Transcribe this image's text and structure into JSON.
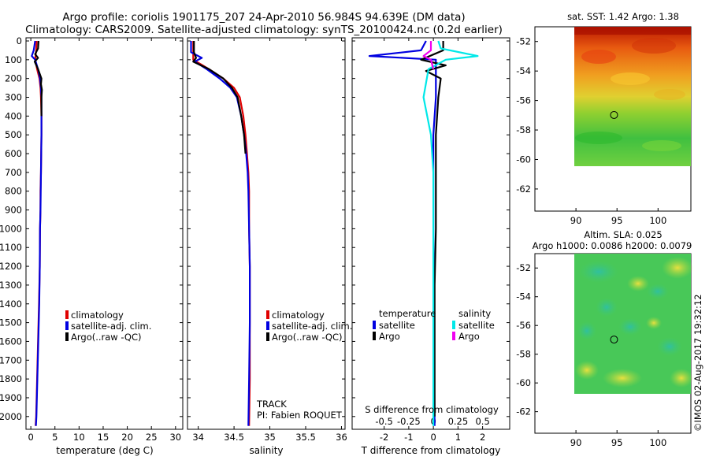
{
  "title_line1": "Argo profile: coriolis 1901175_207 24-Apr-2010 56.984S 94.639E (DM data)",
  "title_line2": "Climatology: CARS2009. Satellite-adjusted climatology: synTS_20100424.nc (0.2d earlier)",
  "watermark": "©IMOS 02-Aug-2017 19:32:12",
  "colors": {
    "climatology": "#e00000",
    "satellite": "#0000e0",
    "argo": "#000000",
    "sat_salinity": "#00e8e8",
    "argo_salinity": "#f000f0"
  },
  "chart_data": [
    {
      "type": "line",
      "name": "temperature",
      "xlabel": "temperature (deg C)",
      "ylabel": "depth",
      "xlim": [
        -1,
        31.5
      ],
      "ylim": [
        0,
        2100
      ],
      "xticks": [
        0,
        5,
        10,
        15,
        20,
        25,
        30
      ],
      "yticks": [
        0,
        100,
        200,
        300,
        400,
        500,
        600,
        700,
        800,
        900,
        1000,
        1100,
        1200,
        1300,
        1400,
        1500,
        1600,
        1700,
        1800,
        1900,
        2000
      ],
      "legend": [
        "climatology",
        "satellite-adj. clim.",
        "Argo(..raw -QC)"
      ],
      "series": [
        {
          "name": "climatology",
          "color": "#e00000",
          "points": [
            [
              1.2,
              0
            ],
            [
              1.1,
              50
            ],
            [
              0.9,
              100
            ],
            [
              1.3,
              150
            ],
            [
              1.8,
              200
            ],
            [
              2.0,
              250
            ],
            [
              2.1,
              300
            ],
            [
              2.2,
              400
            ],
            [
              2.2,
              500
            ],
            [
              2.15,
              600
            ],
            [
              2.1,
              700
            ],
            [
              2.0,
              800
            ],
            [
              2.0,
              900
            ],
            [
              1.9,
              1000
            ],
            [
              1.85,
              1200
            ],
            [
              1.7,
              1400
            ],
            [
              1.5,
              1600
            ],
            [
              1.3,
              1800
            ],
            [
              1.1,
              2000
            ],
            [
              1.0,
              2050
            ]
          ]
        },
        {
          "name": "satellite-adj. clim.",
          "color": "#0000e0",
          "points": [
            [
              0.9,
              0
            ],
            [
              0.6,
              50
            ],
            [
              0.2,
              80
            ],
            [
              0.9,
              100
            ],
            [
              1.5,
              150
            ],
            [
              1.9,
              200
            ],
            [
              2.1,
              250
            ],
            [
              2.2,
              300
            ],
            [
              2.2,
              400
            ],
            [
              2.2,
              500
            ],
            [
              2.15,
              600
            ],
            [
              2.1,
              700
            ],
            [
              2.05,
              800
            ],
            [
              2.0,
              900
            ],
            [
              1.9,
              1000
            ],
            [
              1.85,
              1200
            ],
            [
              1.75,
              1400
            ],
            [
              1.55,
              1600
            ],
            [
              1.35,
              1800
            ],
            [
              1.15,
              2000
            ],
            [
              1.05,
              2050
            ]
          ]
        },
        {
          "name": "Argo(..raw -QC)",
          "color": "#000000",
          "points": [
            [
              1.6,
              0
            ],
            [
              1.5,
              40
            ],
            [
              0.9,
              70
            ],
            [
              1.5,
              90
            ],
            [
              0.8,
              110
            ],
            [
              1.5,
              150
            ],
            [
              2.2,
              200
            ],
            [
              2.1,
              230
            ],
            [
              2.3,
              260
            ],
            [
              2.2,
              300
            ],
            [
              2.2,
              400
            ]
          ]
        }
      ]
    },
    {
      "type": "line",
      "name": "salinity",
      "xlabel": "salinity",
      "ylabel": "depth",
      "xlim": [
        33.85,
        36.05
      ],
      "ylim": [
        0,
        2100
      ],
      "xticks": [
        34,
        34.5,
        35,
        35.5,
        36
      ],
      "legend": [
        "climatology",
        "satellite-adj. clim.",
        "Argo(..raw -QC)"
      ],
      "annotations": [
        "TRACK",
        "PI: Fabien ROQUET"
      ],
      "series": [
        {
          "name": "climatology",
          "color": "#e00000",
          "points": [
            [
              33.93,
              0
            ],
            [
              33.93,
              100
            ],
            [
              34.15,
              150
            ],
            [
              34.35,
              200
            ],
            [
              34.5,
              250
            ],
            [
              34.58,
              300
            ],
            [
              34.63,
              400
            ],
            [
              34.66,
              500
            ],
            [
              34.68,
              600
            ],
            [
              34.7,
              700
            ],
            [
              34.71,
              800
            ],
            [
              34.71,
              1000
            ],
            [
              34.72,
              1200
            ],
            [
              34.72,
              1500
            ],
            [
              34.72,
              1800
            ],
            [
              34.71,
              2050
            ]
          ]
        },
        {
          "name": "satellite-adj. clim.",
          "color": "#0000e0",
          "points": [
            [
              33.9,
              0
            ],
            [
              33.9,
              60
            ],
            [
              34.05,
              90
            ],
            [
              33.95,
              110
            ],
            [
              34.12,
              150
            ],
            [
              34.3,
              200
            ],
            [
              34.45,
              250
            ],
            [
              34.54,
              300
            ],
            [
              34.6,
              400
            ],
            [
              34.64,
              500
            ],
            [
              34.67,
              600
            ],
            [
              34.69,
              700
            ],
            [
              34.7,
              800
            ],
            [
              34.71,
              1000
            ],
            [
              34.72,
              1200
            ],
            [
              34.72,
              1500
            ],
            [
              34.71,
              1800
            ],
            [
              34.7,
              2050
            ]
          ]
        },
        {
          "name": "Argo(..raw -QC)",
          "color": "#000000",
          "points": [
            [
              33.94,
              0
            ],
            [
              33.94,
              60
            ],
            [
              33.97,
              90
            ],
            [
              33.93,
              110
            ],
            [
              34.15,
              150
            ],
            [
              34.35,
              200
            ],
            [
              34.47,
              250
            ],
            [
              34.55,
              300
            ],
            [
              34.6,
              400
            ],
            [
              34.64,
              500
            ],
            [
              34.66,
              600
            ]
          ]
        }
      ]
    },
    {
      "type": "line",
      "name": "difference",
      "xlabel": "T difference from climatology",
      "xlabel_top": "S difference from climatology",
      "ylabel": "depth",
      "xlim": [
        -3.3,
        3.1
      ],
      "ylim": [
        0,
        2100
      ],
      "xticks": [
        -2,
        -1,
        0,
        1,
        2
      ],
      "xticks_s": [
        "-0.5",
        "-0.25",
        "0",
        "0.25",
        "0.5"
      ],
      "legend_temperature_title": "temperature",
      "legend_salinity_title": "salinity",
      "legend_temperature": [
        "satellite",
        "Argo"
      ],
      "legend_salinity": [
        "satellite",
        "Argo"
      ],
      "series": [
        {
          "name": "T satellite",
          "color": "#0000e0",
          "points": [
            [
              -0.3,
              0
            ],
            [
              -0.5,
              50
            ],
            [
              -2.6,
              80
            ],
            [
              0.1,
              100
            ],
            [
              0.1,
              150
            ],
            [
              0.1,
              300
            ],
            [
              0.0,
              500
            ],
            [
              0.0,
              1000
            ],
            [
              0.02,
              1500
            ],
            [
              0.05,
              2050
            ]
          ]
        },
        {
          "name": "T Argo",
          "color": "#000000",
          "points": [
            [
              0.4,
              0
            ],
            [
              0.4,
              50
            ],
            [
              -0.5,
              100
            ],
            [
              0.5,
              130
            ],
            [
              -0.3,
              160
            ],
            [
              0.3,
              200
            ],
            [
              0.2,
              300
            ],
            [
              0.1,
              500
            ],
            [
              0.1,
              700
            ],
            [
              0.1,
              1000
            ],
            [
              0.05,
              1300
            ],
            [
              0.05,
              1600
            ],
            [
              0.05,
              2000
            ]
          ]
        },
        {
          "name": "S satellite",
          "color": "#00e8e8",
          "points": [
            [
              0.2,
              0
            ],
            [
              0.3,
              40
            ],
            [
              1.8,
              80
            ],
            [
              0.5,
              100
            ],
            [
              -0.2,
              150
            ],
            [
              -0.4,
              300
            ],
            [
              -0.1,
              500
            ],
            [
              0.0,
              700
            ],
            [
              0.0,
              1000
            ],
            [
              0.0,
              1500
            ],
            [
              0.0,
              2050
            ]
          ]
        },
        {
          "name": "S Argo",
          "color": "#f000f0",
          "points": [
            [
              -0.1,
              0
            ],
            [
              -0.1,
              50
            ],
            [
              -0.4,
              80
            ],
            [
              -0.1,
              100
            ],
            [
              0.0,
              150
            ]
          ]
        }
      ]
    },
    {
      "type": "heatmap",
      "name": "sst_map",
      "title": "sat. SST: 1.42 Argo: 1.38",
      "xlim": [
        85,
        104
      ],
      "ylim": [
        -63.5,
        -51
      ],
      "xticks": [
        90,
        95,
        100
      ],
      "yticks": [
        -52,
        -54,
        -56,
        -58,
        -60,
        -62
      ],
      "data_extent": [
        90,
        105,
        -60,
        -51
      ],
      "marker": [
        94.64,
        -56.98
      ]
    },
    {
      "type": "heatmap",
      "name": "sla_map",
      "title_line1": "Altim. SLA: 0.025",
      "title_line2": "Argo h1000: 0.0086 h2000: 0.0079",
      "xlim": [
        85,
        104
      ],
      "ylim": [
        -63.5,
        -51
      ],
      "xticks": [
        90,
        95,
        100
      ],
      "yticks": [
        -52,
        -54,
        -56,
        -58,
        -60,
        -62
      ],
      "data_extent": [
        90,
        105,
        -60,
        -51
      ],
      "marker": [
        94.64,
        -56.98
      ]
    }
  ]
}
